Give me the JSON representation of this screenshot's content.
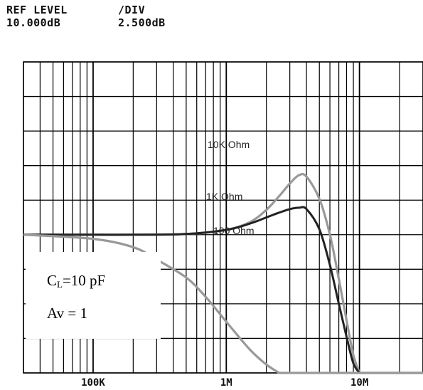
{
  "header": {
    "ref_level_label": "REF LEVEL",
    "ref_level_value": "10.000dB",
    "div_label": "/DIV",
    "div_value": "2.500dB"
  },
  "annotation": {
    "load_cap_prefix": "C",
    "load_cap_sub": "L",
    "load_cap_value": "=10 pF",
    "gain": "Av = 1"
  },
  "chart_data": {
    "type": "line",
    "x_scale": "log",
    "x_unit": "Hz",
    "xlim": [
      30000,
      30000000
    ],
    "ylim": [
      -10,
      12.5
    ],
    "y_units": "dB",
    "ref_level_db": 10,
    "db_per_div": 2.5,
    "grid": true,
    "x_tick_labels": [
      {
        "value": 100000,
        "label": "100K"
      },
      {
        "value": 1000000,
        "label": "1M"
      },
      {
        "value": 10000000,
        "label": "10M"
      }
    ],
    "series": [
      {
        "name": "10K Ohm",
        "color": "#999999",
        "points": [
          [
            30000,
            0
          ],
          [
            100000,
            0
          ],
          [
            200000,
            0
          ],
          [
            500000,
            0.05
          ],
          [
            1000000,
            0.35
          ],
          [
            1500000,
            0.9
          ],
          [
            2000000,
            1.8
          ],
          [
            2500000,
            2.8
          ],
          [
            3000000,
            3.7
          ],
          [
            3500000,
            4.3
          ],
          [
            4000000,
            4.2
          ],
          [
            5000000,
            2.6
          ],
          [
            6000000,
            0
          ],
          [
            7000000,
            -3.2
          ],
          [
            8000000,
            -6.2
          ],
          [
            9000000,
            -8.7
          ],
          [
            10000000,
            -10
          ]
        ]
      },
      {
        "name": "1K Ohm",
        "color": "#222222",
        "points": [
          [
            30000,
            0
          ],
          [
            100000,
            0
          ],
          [
            200000,
            0
          ],
          [
            500000,
            0.05
          ],
          [
            1000000,
            0.35
          ],
          [
            1500000,
            0.8
          ],
          [
            2000000,
            1.25
          ],
          [
            2500000,
            1.6
          ],
          [
            3000000,
            1.85
          ],
          [
            3500000,
            1.95
          ],
          [
            4000000,
            1.85
          ],
          [
            5000000,
            0.4
          ],
          [
            6000000,
            -2.2
          ],
          [
            7000000,
            -5
          ],
          [
            8000000,
            -7.4
          ],
          [
            9000000,
            -9.3
          ],
          [
            10000000,
            -10
          ]
        ]
      },
      {
        "name": "100 Ohm",
        "color": "#999999",
        "points": [
          [
            30000,
            0
          ],
          [
            100000,
            -0.3
          ],
          [
            200000,
            -0.9
          ],
          [
            300000,
            -1.8
          ],
          [
            500000,
            -3.1
          ],
          [
            700000,
            -4.5
          ],
          [
            1000000,
            -6.3
          ],
          [
            1500000,
            -8.3
          ],
          [
            2000000,
            -9.4
          ],
          [
            2500000,
            -10
          ]
        ]
      }
    ]
  }
}
